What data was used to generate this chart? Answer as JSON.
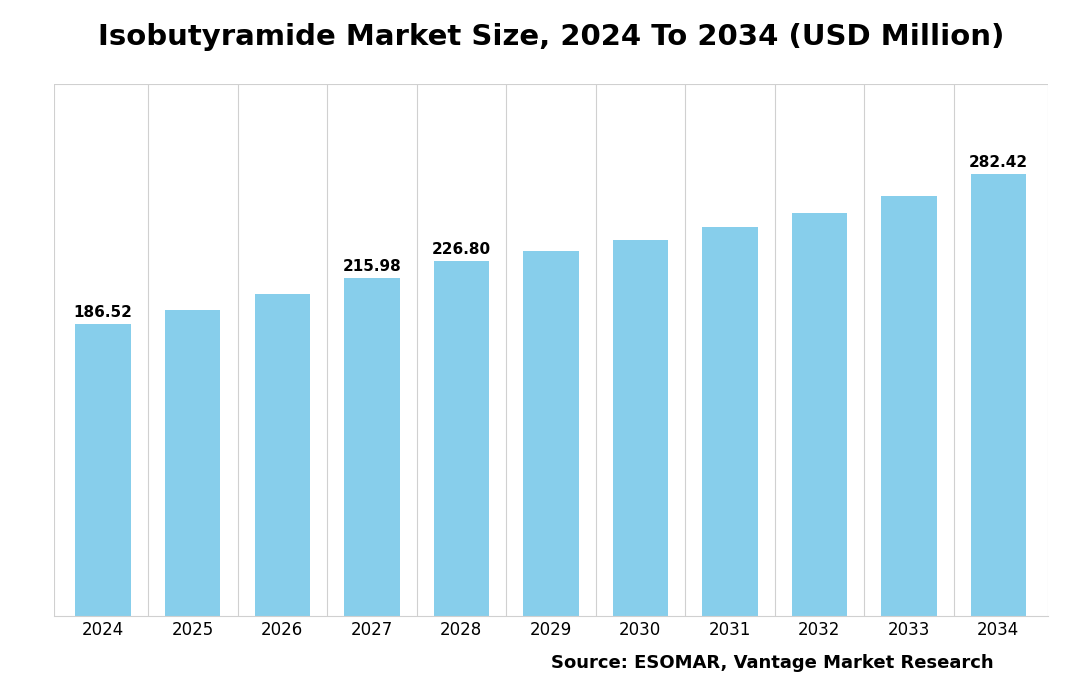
{
  "title": "Isobutyramide Market Size, 2024 To 2034 (USD Million)",
  "source_text": "Source: ESOMAR, Vantage Market Research",
  "years": [
    2024,
    2025,
    2026,
    2027,
    2028,
    2029,
    2030,
    2031,
    2032,
    2033,
    2034
  ],
  "values": [
    186.52,
    195.5,
    205.5,
    215.98,
    226.8,
    233.5,
    240.5,
    248.5,
    257.5,
    268.5,
    282.42
  ],
  "labeled_values": {
    "0": "186.52",
    "3": "215.98",
    "4": "226.80",
    "10": "282.42"
  },
  "bar_color": "#87CEEB",
  "bar_edge_color": "none",
  "background_color": "#ffffff",
  "grid_color": "#d0d0d0",
  "title_fontsize": 21,
  "tick_fontsize": 12,
  "label_fontsize": 11,
  "source_fontsize": 13,
  "ylim": [
    0,
    340
  ],
  "bar_width": 0.62
}
